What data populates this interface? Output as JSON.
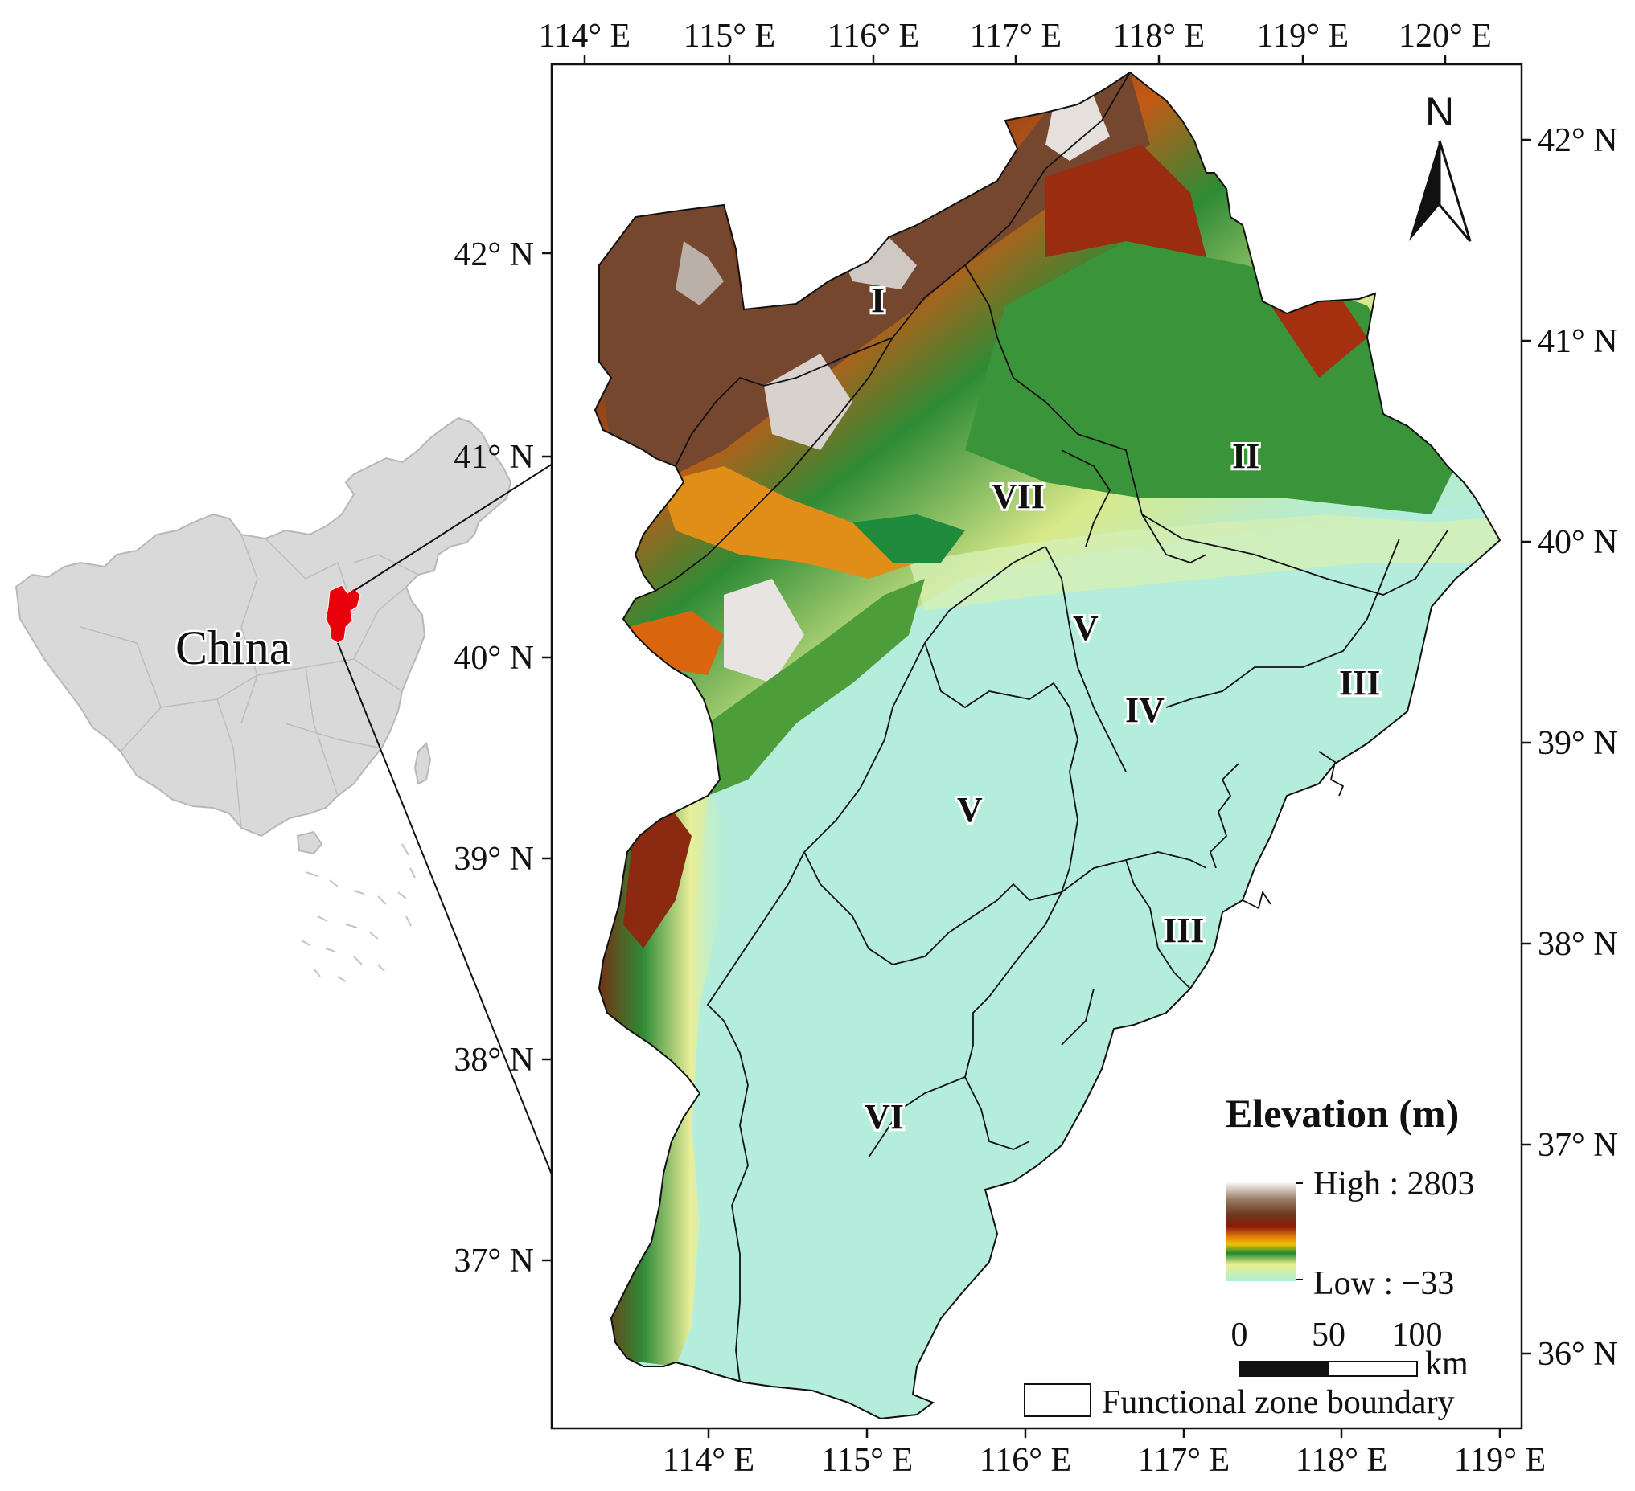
{
  "map": {
    "top_axis_labels": [
      "114° E",
      "115° E",
      "116° E",
      "117° E",
      "118° E",
      "119° E",
      "120° E"
    ],
    "bottom_axis_labels": [
      "114° E",
      "115° E",
      "116° E",
      "117° E",
      "118° E",
      "119° E"
    ],
    "left_axis_labels": [
      "42° N",
      "41° N",
      "40° N",
      "39° N",
      "38° N",
      "37° N"
    ],
    "right_axis_labels": [
      "42° N",
      "41° N",
      "40° N",
      "39° N",
      "38° N",
      "37° N",
      "36° N"
    ],
    "zones": [
      "I",
      "II",
      "III",
      "III",
      "IV",
      "V",
      "V",
      "VI",
      "VII"
    ]
  },
  "inset": {
    "country_label": "China",
    "highlight_color": "#e8000b",
    "land_color": "#d9d9d9"
  },
  "north_arrow": {
    "label": "N"
  },
  "legend": {
    "title": "Elevation (m)",
    "high_label": "High : 2803",
    "low_label": "Low : −33",
    "ramp_colors": [
      "#ffffff",
      "#7a4a32",
      "#8b1a0a",
      "#e07a10",
      "#f2c200",
      "#1f8a2e",
      "#e9f08a",
      "#aeeed8"
    ]
  },
  "scale_bar": {
    "ticks": [
      "0",
      "50",
      "100"
    ],
    "unit": "km"
  },
  "boundary_legend": {
    "label": "Functional zone boundary"
  }
}
